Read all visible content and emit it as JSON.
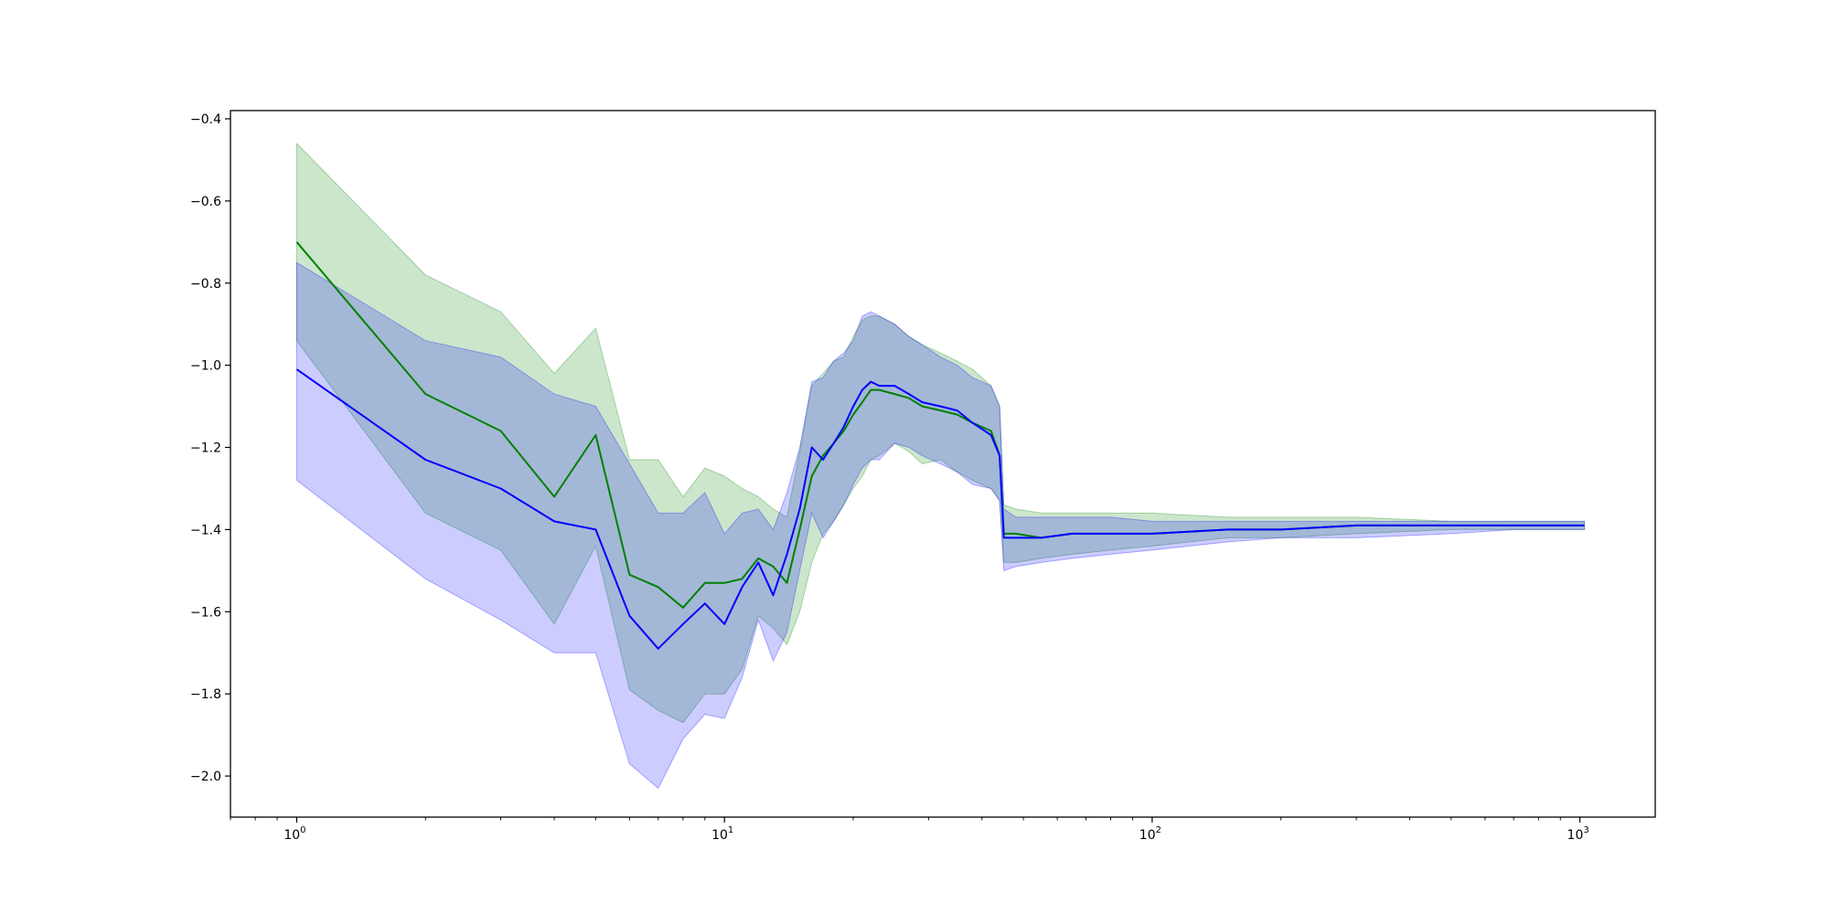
{
  "chart_data": {
    "type": "line",
    "title": "",
    "xlabel": "",
    "ylabel": "",
    "xscale": "log",
    "xlim": [
      0.7,
      1500
    ],
    "ylim": [
      -2.1,
      -0.38
    ],
    "grid": false,
    "x_ticks": [
      {
        "value": 1,
        "base": "10",
        "exp": "0"
      },
      {
        "value": 10,
        "base": "10",
        "exp": "1"
      },
      {
        "value": 100,
        "base": "10",
        "exp": "2"
      },
      {
        "value": 1000,
        "base": "10",
        "exp": "3"
      }
    ],
    "y_ticks": [
      {
        "value": -0.4,
        "label": "−0.4"
      },
      {
        "value": -0.6,
        "label": "−0.6"
      },
      {
        "value": -0.8,
        "label": "−0.8"
      },
      {
        "value": -1.0,
        "label": "−1.0"
      },
      {
        "value": -1.2,
        "label": "−1.2"
      },
      {
        "value": -1.4,
        "label": "−1.4"
      },
      {
        "value": -1.6,
        "label": "−1.6"
      },
      {
        "value": -1.8,
        "label": "−1.8"
      },
      {
        "value": -2.0,
        "label": "−2.0"
      }
    ],
    "series": [
      {
        "color": "#008000",
        "band_color": "#008000",
        "band_opacity": 0.2,
        "x": [
          1,
          2,
          3,
          4,
          5,
          6,
          7,
          8,
          9,
          10,
          11,
          12,
          13,
          14,
          15,
          16,
          17,
          18,
          19,
          20,
          21,
          22,
          23,
          25,
          27,
          29,
          32,
          35,
          38,
          42,
          44,
          45,
          48,
          55,
          65,
          80,
          100,
          150,
          200,
          300,
          500,
          700,
          1024
        ],
        "mean": [
          -0.7,
          -1.07,
          -1.16,
          -1.32,
          -1.17,
          -1.51,
          -1.54,
          -1.59,
          -1.53,
          -1.53,
          -1.52,
          -1.47,
          -1.49,
          -1.53,
          -1.4,
          -1.27,
          -1.22,
          -1.19,
          -1.16,
          -1.12,
          -1.09,
          -1.06,
          -1.06,
          -1.07,
          -1.08,
          -1.1,
          -1.11,
          -1.12,
          -1.14,
          -1.16,
          -1.22,
          -1.41,
          -1.41,
          -1.42,
          -1.41,
          -1.41,
          -1.41,
          -1.4,
          -1.4,
          -1.39,
          -1.39,
          -1.39,
          -1.39
        ],
        "upper": [
          -0.46,
          -0.78,
          -0.87,
          -1.02,
          -0.91,
          -1.23,
          -1.23,
          -1.32,
          -1.25,
          -1.27,
          -1.3,
          -1.32,
          -1.35,
          -1.37,
          -1.21,
          -1.05,
          -1.02,
          -0.99,
          -0.98,
          -0.93,
          -0.89,
          -0.88,
          -0.88,
          -0.9,
          -0.93,
          -0.95,
          -0.97,
          -0.99,
          -1.01,
          -1.05,
          -1.1,
          -1.34,
          -1.35,
          -1.36,
          -1.36,
          -1.36,
          -1.36,
          -1.37,
          -1.37,
          -1.37,
          -1.38,
          -1.38,
          -1.38
        ],
        "lower": [
          -0.94,
          -1.36,
          -1.45,
          -1.63,
          -1.44,
          -1.79,
          -1.84,
          -1.87,
          -1.8,
          -1.8,
          -1.74,
          -1.61,
          -1.64,
          -1.68,
          -1.6,
          -1.48,
          -1.41,
          -1.38,
          -1.34,
          -1.3,
          -1.27,
          -1.23,
          -1.22,
          -1.19,
          -1.21,
          -1.24,
          -1.23,
          -1.26,
          -1.28,
          -1.3,
          -1.33,
          -1.48,
          -1.48,
          -1.47,
          -1.46,
          -1.45,
          -1.44,
          -1.42,
          -1.42,
          -1.41,
          -1.4,
          -1.4,
          -1.4
        ]
      },
      {
        "color": "#0000ff",
        "band_color": "#0000ff",
        "band_opacity": 0.2,
        "x": [
          1,
          2,
          3,
          4,
          5,
          6,
          7,
          8,
          9,
          10,
          11,
          12,
          13,
          14,
          15,
          16,
          17,
          18,
          19,
          20,
          21,
          22,
          23,
          25,
          27,
          29,
          32,
          35,
          38,
          42,
          44,
          45,
          48,
          55,
          65,
          80,
          100,
          150,
          200,
          300,
          500,
          700,
          1024
        ],
        "mean": [
          -1.01,
          -1.23,
          -1.3,
          -1.38,
          -1.4,
          -1.61,
          -1.69,
          -1.63,
          -1.58,
          -1.63,
          -1.54,
          -1.48,
          -1.56,
          -1.46,
          -1.35,
          -1.2,
          -1.23,
          -1.19,
          -1.15,
          -1.1,
          -1.06,
          -1.04,
          -1.05,
          -1.05,
          -1.07,
          -1.09,
          -1.1,
          -1.11,
          -1.14,
          -1.17,
          -1.22,
          -1.42,
          -1.42,
          -1.42,
          -1.41,
          -1.41,
          -1.41,
          -1.4,
          -1.4,
          -1.39,
          -1.39,
          -1.39,
          -1.39
        ],
        "upper": [
          -0.75,
          -0.94,
          -0.98,
          -1.07,
          -1.1,
          -1.24,
          -1.36,
          -1.36,
          -1.31,
          -1.41,
          -1.36,
          -1.35,
          -1.4,
          -1.31,
          -1.2,
          -1.04,
          -1.03,
          -0.99,
          -0.97,
          -0.94,
          -0.88,
          -0.87,
          -0.88,
          -0.9,
          -0.93,
          -0.95,
          -0.98,
          -1.0,
          -1.03,
          -1.05,
          -1.1,
          -1.35,
          -1.37,
          -1.37,
          -1.37,
          -1.37,
          -1.38,
          -1.38,
          -1.38,
          -1.38,
          -1.38,
          -1.38,
          -1.38
        ],
        "lower": [
          -1.28,
          -1.52,
          -1.62,
          -1.7,
          -1.7,
          -1.97,
          -2.03,
          -1.91,
          -1.85,
          -1.86,
          -1.76,
          -1.62,
          -1.72,
          -1.65,
          -1.5,
          -1.36,
          -1.42,
          -1.38,
          -1.34,
          -1.29,
          -1.25,
          -1.23,
          -1.23,
          -1.19,
          -1.2,
          -1.22,
          -1.24,
          -1.26,
          -1.29,
          -1.3,
          -1.33,
          -1.5,
          -1.49,
          -1.48,
          -1.47,
          -1.46,
          -1.45,
          -1.43,
          -1.42,
          -1.42,
          -1.41,
          -1.4,
          -1.4
        ]
      }
    ]
  }
}
